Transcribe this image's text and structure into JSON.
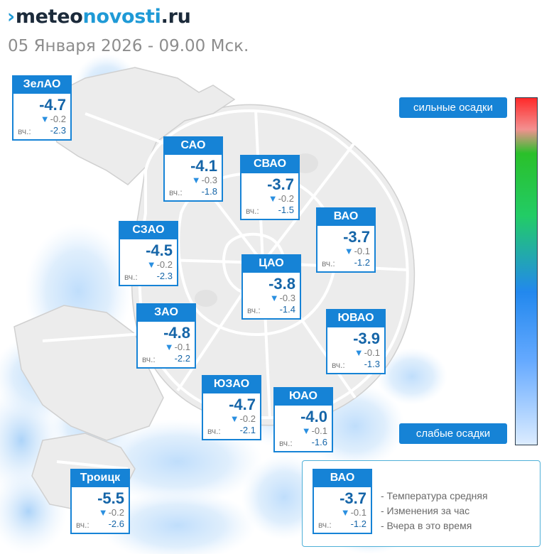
{
  "header": {
    "logo_prefix": "meteo",
    "logo_accent": "novosti",
    "logo_suffix": ".ru",
    "date_line": "05 Января 2026 - 09.00 Мск."
  },
  "colors": {
    "card_blue": "#1683d6",
    "temp_blue": "#1565a8",
    "precip_blue": "#d8eaff"
  },
  "change_icon": "triangle-down-icon",
  "yesterday_label": "вч.:",
  "districts": [
    {
      "name": "ЗелАО",
      "temp": "-4.7",
      "change": "-0.2",
      "yesterday": "-2.3"
    },
    {
      "name": "САО",
      "temp": "-4.1",
      "change": "-0.3",
      "yesterday": "-1.8"
    },
    {
      "name": "СВАО",
      "temp": "-3.7",
      "change": "-0.2",
      "yesterday": "-1.5"
    },
    {
      "name": "СЗАО",
      "temp": "-4.5",
      "change": "-0.2",
      "yesterday": "-2.3"
    },
    {
      "name": "ВАО",
      "temp": "-3.7",
      "change": "-0.1",
      "yesterday": "-1.2"
    },
    {
      "name": "ЦАО",
      "temp": "-3.8",
      "change": "-0.3",
      "yesterday": "-1.4"
    },
    {
      "name": "ЗАО",
      "temp": "-4.8",
      "change": "-0.1",
      "yesterday": "-2.2"
    },
    {
      "name": "ЮВАО",
      "temp": "-3.9",
      "change": "-0.1",
      "yesterday": "-1.3"
    },
    {
      "name": "ЮЗАО",
      "temp": "-4.7",
      "change": "-0.2",
      "yesterday": "-2.1"
    },
    {
      "name": "ЮАО",
      "temp": "-4.0",
      "change": "-0.1",
      "yesterday": "-1.6"
    },
    {
      "name": "Троицк",
      "temp": "-5.5",
      "change": "-0.2",
      "yesterday": "-2.6"
    }
  ],
  "scale": {
    "top_label": "сильные осадки",
    "bottom_label": "слабые осадки"
  },
  "legend": {
    "example": {
      "name": "ВАО",
      "temp": "-3.7",
      "change": "-0.1",
      "yesterday": "-1.2"
    },
    "line_temp": "- Температура средняя",
    "line_change": "- Изменения за час",
    "line_yesterday": "- Вчера в это время"
  }
}
